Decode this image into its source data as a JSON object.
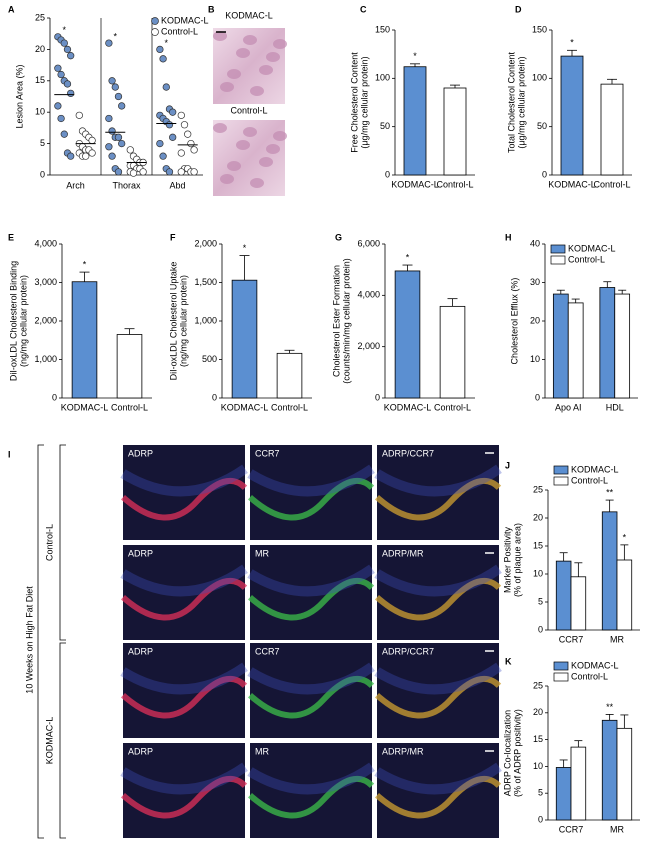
{
  "chart_data": [
    {
      "panel": "A",
      "type": "dot",
      "y_label": [
        "Lesion Area (%)"
      ],
      "categories": [
        "Arch",
        "Thorax",
        "Abd"
      ],
      "ylim": [
        0,
        25
      ],
      "yticks": [
        0,
        5,
        10,
        15,
        20,
        25
      ],
      "legend": "top-right",
      "significance": [
        "*",
        "*",
        "*"
      ],
      "series": [
        {
          "name": "KODMAC-L",
          "color": "#6b8fc4",
          "values": [
            [
              22,
              21.5,
              21,
              20,
              19,
              17,
              16,
              15,
              14.5,
              13,
              11,
              9,
              6.5,
              3.5,
              3
            ],
            [
              21,
              15,
              14,
              12.5,
              11,
              9,
              7,
              6,
              6,
              5,
              4.5,
              3,
              1,
              0.5
            ],
            [
              20,
              18.5,
              14,
              10.5,
              10,
              9.5,
              9,
              8.5,
              8,
              6,
              5,
              3,
              1,
              0.5
            ]
          ],
          "medians": [
            12.8,
            6.8,
            8.2
          ]
        },
        {
          "name": "Control-L",
          "color": "#ffffff",
          "values": [
            [
              9.5,
              7,
              6.5,
              6,
              5.5,
              5,
              4.5,
              4,
              4,
              3.5,
              3.5,
              3,
              3
            ],
            [
              4,
              3,
              2.5,
              2,
              2,
              1.5,
              1.5,
              1,
              1,
              0.5,
              0.5,
              0.3
            ],
            [
              9.5,
              8,
              6.5,
              5,
              4,
              3.5,
              1,
              1,
              0.5,
              0.5,
              0.5
            ]
          ],
          "medians": [
            5,
            2,
            4.8
          ]
        }
      ]
    },
    {
      "panel": "C",
      "type": "bar",
      "y_label": [
        "Free Cholesterol Content",
        "(μg/mg cellular protein)"
      ],
      "categories": [
        "KODMAC-L",
        "Control-L"
      ],
      "values": [
        112,
        90
      ],
      "errors": [
        3,
        3
      ],
      "colors": [
        "#5b8fd1",
        "#ffffff"
      ],
      "significance": [
        "*",
        null
      ],
      "ylim": [
        0,
        150
      ],
      "yticks": [
        0,
        50,
        100,
        150
      ]
    },
    {
      "panel": "D",
      "type": "bar",
      "y_label": [
        "Total Cholesterol Content",
        "(μg/mg cellular protein)"
      ],
      "categories": [
        "KODMAC-L",
        "Control-L"
      ],
      "values": [
        123,
        94
      ],
      "errors": [
        6,
        5
      ],
      "colors": [
        "#5b8fd1",
        "#ffffff"
      ],
      "significance": [
        "*",
        null
      ],
      "ylim": [
        0,
        150
      ],
      "yticks": [
        0,
        50,
        100,
        150
      ]
    },
    {
      "panel": "E",
      "type": "bar",
      "y_label": [
        "DiI-oxLDL Cholesterol Binding",
        "(ng/mg cellular protein)"
      ],
      "categories": [
        "KODMAC-L",
        "Control-L"
      ],
      "values": [
        3020,
        1650
      ],
      "errors": [
        250,
        150
      ],
      "colors": [
        "#5b8fd1",
        "#ffffff"
      ],
      "significance": [
        "*",
        null
      ],
      "ylim": [
        0,
        4000
      ],
      "yticks": [
        0,
        {
          "value": 1000,
          "label": "1,000"
        },
        {
          "value": 2000,
          "label": "2,000"
        },
        {
          "value": 3000,
          "label": "3,000"
        },
        {
          "value": 4000,
          "label": "4,000"
        }
      ]
    },
    {
      "panel": "F",
      "type": "bar",
      "y_label": [
        "DiI-oxLDL Cholesterol Uptake",
        "(ng/mg cellular protein)"
      ],
      "categories": [
        "KODMAC-L",
        "Control-L"
      ],
      "values": [
        1530,
        580
      ],
      "errors": [
        320,
        40
      ],
      "colors": [
        "#5b8fd1",
        "#ffffff"
      ],
      "significance": [
        "*",
        null
      ],
      "ylim": [
        0,
        2000
      ],
      "yticks": [
        0,
        500,
        {
          "value": 1000,
          "label": "1,000"
        },
        {
          "value": 1500,
          "label": "1,500"
        },
        {
          "value": 2000,
          "label": "2,000"
        }
      ]
    },
    {
      "panel": "G",
      "type": "bar",
      "y_label": [
        "Cholesterol Ester Formation",
        "(counts/min/mg cellular protein)"
      ],
      "categories": [
        "KODMAC-L",
        "Control-L"
      ],
      "values": [
        4950,
        3570
      ],
      "errors": [
        230,
        300
      ],
      "colors": [
        "#5b8fd1",
        "#ffffff"
      ],
      "significance": [
        "*",
        null
      ],
      "ylim": [
        0,
        6000
      ],
      "yticks": [
        0,
        {
          "value": 2000,
          "label": "2,000"
        },
        {
          "value": 4000,
          "label": "4,000"
        },
        {
          "value": 6000,
          "label": "6,000"
        }
      ]
    },
    {
      "panel": "H",
      "type": "grouped_bar",
      "y_label": [
        "Cholesterol Efflux (%)"
      ],
      "categories": [
        "Apo AI",
        "HDL"
      ],
      "ylim": [
        0,
        40
      ],
      "yticks": [
        0,
        10,
        20,
        30,
        40
      ],
      "legend": "top",
      "series": [
        {
          "name": "KODMAC-L",
          "color": "#5b8fd1",
          "values": [
            27,
            28.7
          ],
          "errors": [
            1,
            1.5
          ]
        },
        {
          "name": "Control-L",
          "color": "#ffffff",
          "values": [
            24.7,
            27
          ],
          "errors": [
            1,
            1
          ]
        }
      ]
    },
    {
      "panel": "J",
      "type": "grouped_bar",
      "y_label": [
        "Marker Positivity",
        "(% of plaque area)"
      ],
      "categories": [
        "CCR7",
        "MR"
      ],
      "ylim": [
        0,
        25
      ],
      "yticks": [
        0,
        5,
        10,
        15,
        20,
        25
      ],
      "legend": "top",
      "series": [
        {
          "name": "KODMAC-L",
          "color": "#5b8fd1",
          "values": [
            12.3,
            21.1
          ],
          "errors": [
            1.5,
            2.1
          ],
          "significance": [
            null,
            "**"
          ]
        },
        {
          "name": "Control-L",
          "color": "#ffffff",
          "values": [
            9.5,
            12.5
          ],
          "errors": [
            2.5,
            2.7
          ],
          "significance": [
            null,
            "*"
          ]
        }
      ]
    },
    {
      "panel": "K",
      "type": "grouped_bar",
      "y_label": [
        "ADRP Co-localization",
        "(% of ADRP positivity)"
      ],
      "categories": [
        "CCR7",
        "MR"
      ],
      "ylim": [
        0,
        25
      ],
      "yticks": [
        0,
        5,
        10,
        15,
        20,
        25
      ],
      "legend": "top",
      "series": [
        {
          "name": "KODMAC-L",
          "color": "#5b8fd1",
          "values": [
            9.8,
            18.6
          ],
          "errors": [
            1.4,
            1.1
          ],
          "significance": [
            null,
            "**"
          ]
        },
        {
          "name": "Control-L",
          "color": "#ffffff",
          "values": [
            13.6,
            17.1
          ],
          "errors": [
            1.2,
            2.5
          ]
        }
      ]
    }
  ],
  "images": {
    "B": {
      "panel": "B",
      "labels": [
        "KODMAC-L",
        "Control-L"
      ]
    },
    "I": {
      "panel": "I",
      "side_label": "10 Weeks on High Fat Diet",
      "groups": [
        "Control-L",
        "KODMAC-L"
      ],
      "rows": [
        [
          "ADRP",
          "CCR7",
          "ADRP/CCR7"
        ],
        [
          "ADRP",
          "MR",
          "ADRP/MR"
        ],
        [
          "ADRP",
          "CCR7",
          "ADRP/CCR7"
        ],
        [
          "ADRP",
          "MR",
          "ADRP/MR"
        ]
      ]
    }
  }
}
